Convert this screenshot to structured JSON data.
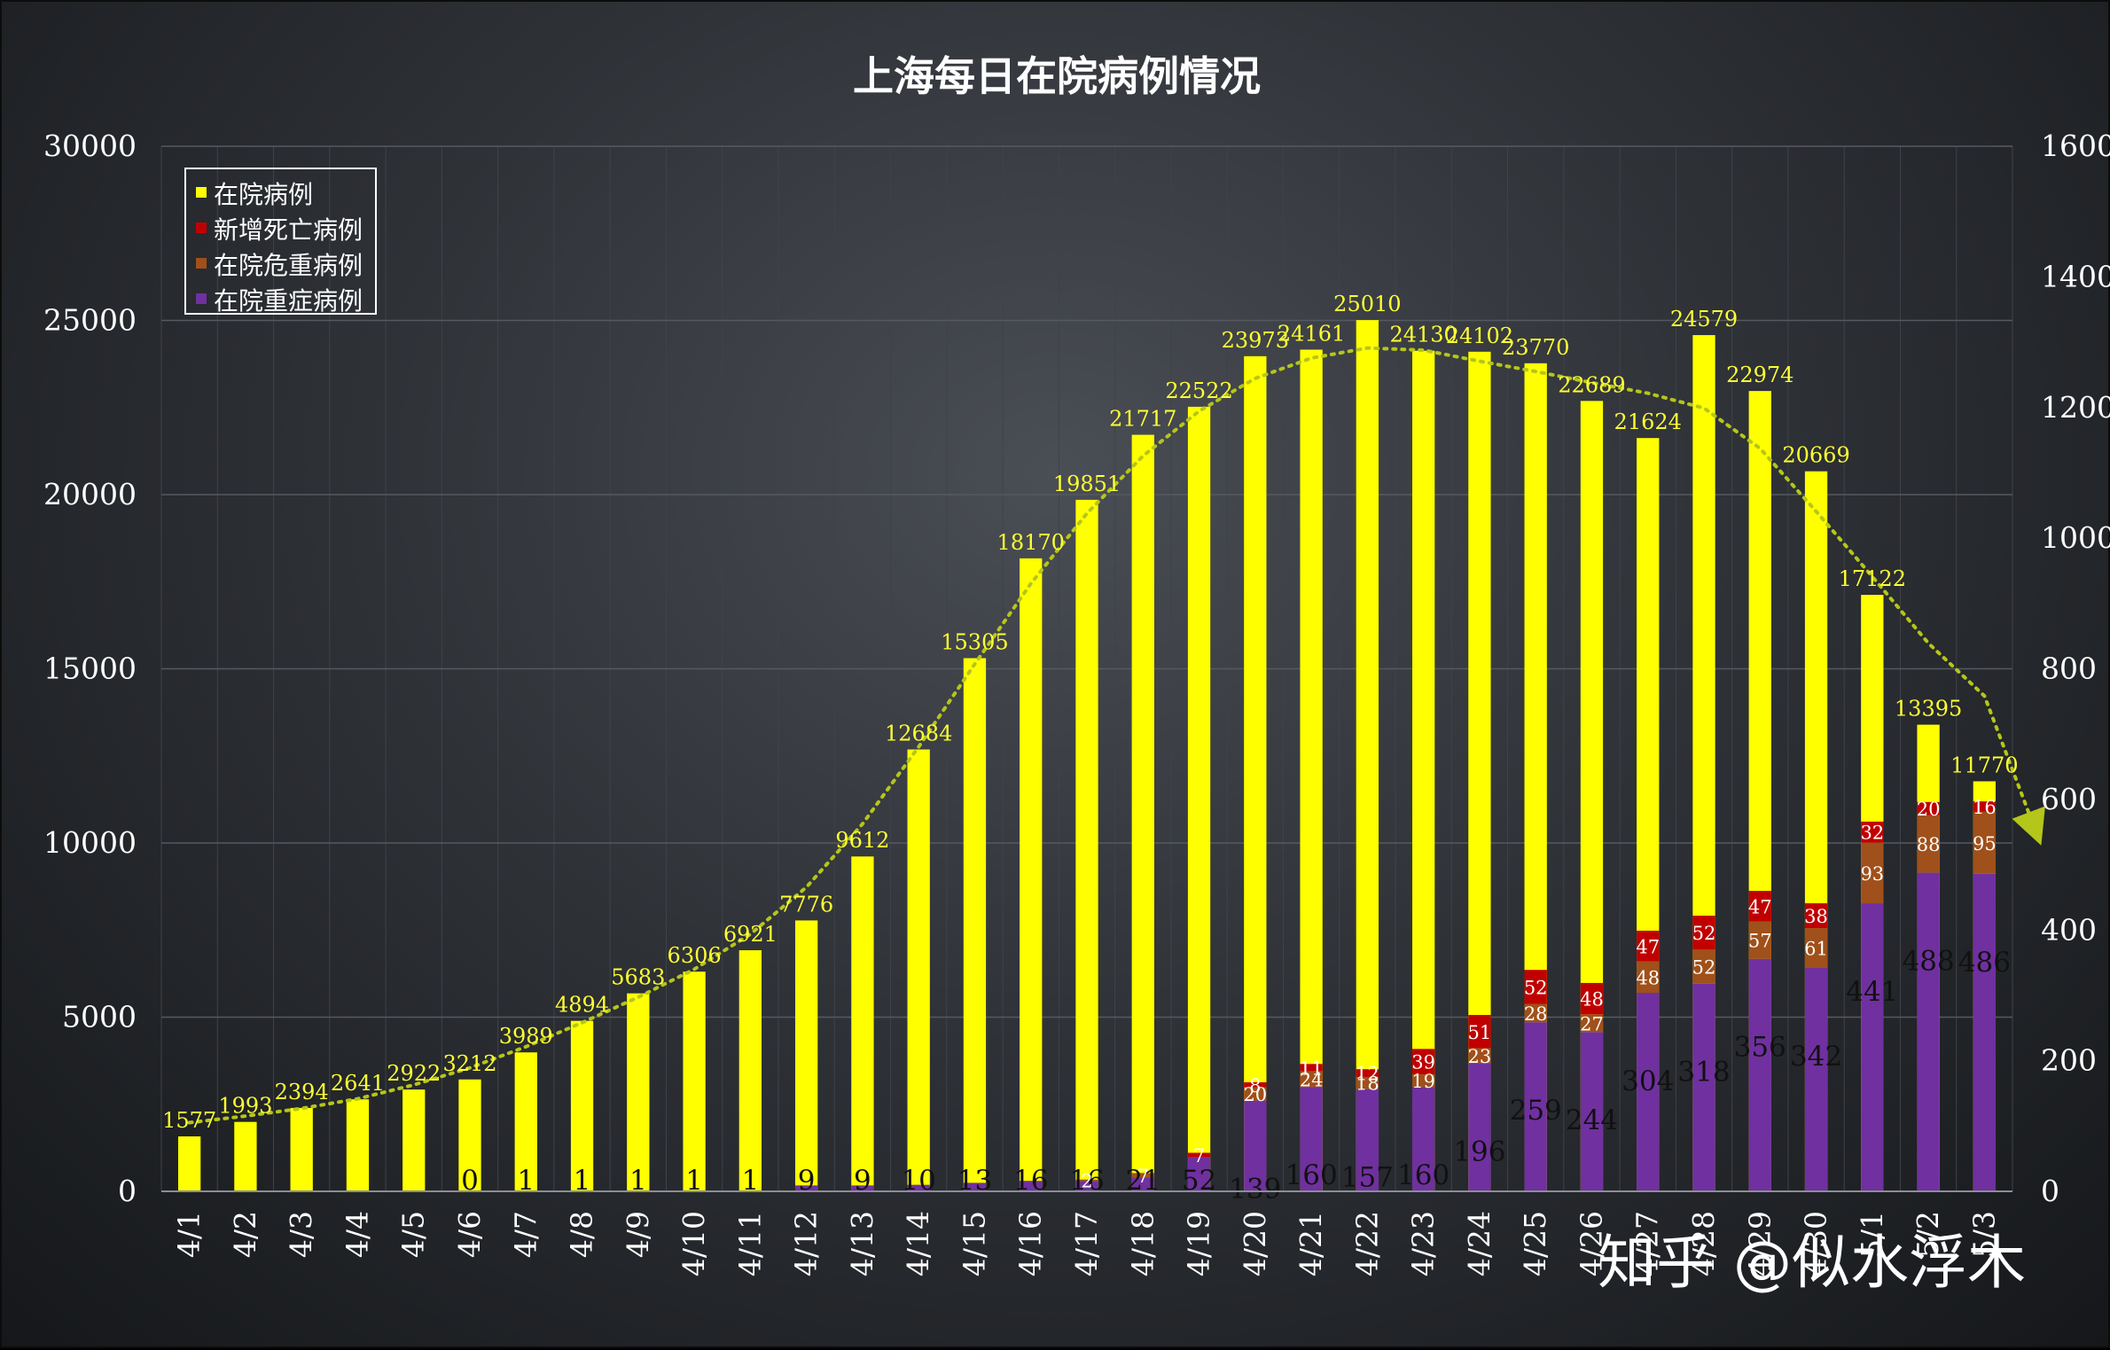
{
  "watermark": "知乎 @似水浮木",
  "colors": {
    "hospitalized": "#ffff00",
    "new_deaths": "#c00000",
    "critical": "#a0501a",
    "severe": "#7030a0",
    "trend": "#b5c61a",
    "grid": "#555a60"
  },
  "chart_data": {
    "type": "bar",
    "title": "上海每日在院病例情况",
    "xlabel": "",
    "ylabel": "",
    "ylim": [
      0,
      30000
    ],
    "y_ticks": [
      0,
      5000,
      10000,
      15000,
      20000,
      25000,
      30000
    ],
    "y2lim": [
      0,
      1600
    ],
    "y2_ticks": [
      0,
      200,
      400,
      600,
      800,
      1000,
      1200,
      1400,
      1600
    ],
    "grid": true,
    "legend_position": "top-left",
    "categories": [
      "4/1",
      "4/2",
      "4/3",
      "4/4",
      "4/5",
      "4/6",
      "4/7",
      "4/8",
      "4/9",
      "4/10",
      "4/11",
      "4/12",
      "4/13",
      "4/14",
      "4/15",
      "4/16",
      "4/17",
      "4/18",
      "4/19",
      "4/20",
      "4/21",
      "4/22",
      "4/23",
      "4/24",
      "4/25",
      "4/26",
      "4/27",
      "4/28",
      "4/29",
      "4/30",
      "5/1",
      "5/2",
      "5/3"
    ],
    "series": [
      {
        "name": "在院病例",
        "axis": "left",
        "values": [
          1577,
          1993,
          2394,
          2641,
          2922,
          3212,
          3989,
          4894,
          5683,
          6306,
          6921,
          7776,
          9612,
          12684,
          15305,
          18170,
          19851,
          21717,
          22522,
          23973,
          24161,
          25010,
          24130,
          24102,
          23770,
          22689,
          21624,
          24579,
          22974,
          20669,
          17122,
          13395,
          11770
        ]
      },
      {
        "name": "新增死亡病例",
        "axis": "right",
        "values": [
          null,
          null,
          null,
          null,
          null,
          null,
          null,
          null,
          null,
          null,
          null,
          null,
          null,
          null,
          null,
          null,
          null,
          null,
          7,
          8,
          11,
          12,
          39,
          51,
          52,
          48,
          47,
          52,
          47,
          38,
          32,
          20,
          16
        ]
      },
      {
        "name": "在院危重病例",
        "axis": "right",
        "values": [
          null,
          null,
          null,
          null,
          null,
          null,
          null,
          null,
          null,
          null,
          null,
          null,
          null,
          null,
          null,
          null,
          2,
          7,
          null,
          20,
          24,
          18,
          19,
          23,
          28,
          27,
          48,
          52,
          57,
          61,
          93,
          88,
          95
        ]
      },
      {
        "name": "在院重症病例",
        "axis": "right",
        "values": [
          null,
          null,
          null,
          null,
          null,
          0,
          1,
          1,
          1,
          1,
          1,
          9,
          9,
          10,
          13,
          16,
          16,
          21,
          52,
          139,
          160,
          157,
          160,
          196,
          259,
          244,
          304,
          318,
          356,
          342,
          441,
          488,
          486
        ]
      }
    ],
    "trend_line": "dotted polynomial trend of 在院病例 with arrow"
  }
}
